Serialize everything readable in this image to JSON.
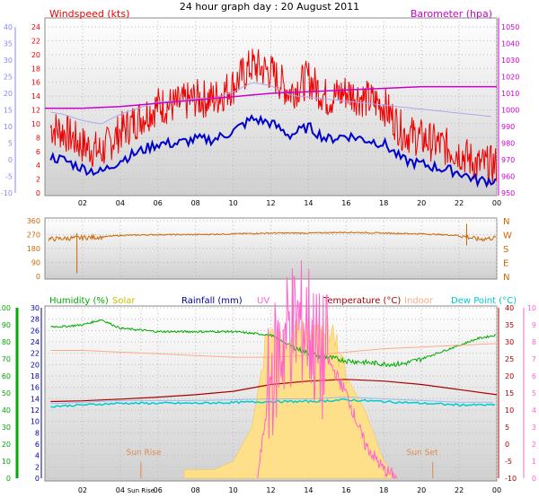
{
  "title": "24 hour graph day : 20 August 2011",
  "colors": {
    "wind": "#ee0000",
    "wind_avg": "#0000cc",
    "baro": "#cc00cc",
    "dir": "#cc6600",
    "humidity": "#00aa00",
    "solar": "#ddcc00",
    "rain": "#000099",
    "uv": "#ff66cc",
    "temp": "#aa0000",
    "indoor": "#ffaa88",
    "dew": "#00cccc",
    "left_axis_light": "#8888ee"
  },
  "x_ticks": [
    "02",
    "04",
    "06",
    "08",
    "10",
    "12",
    "14",
    "16",
    "18",
    "20",
    "22",
    "00"
  ],
  "panel1": {
    "title_left": "Windspeed (kts)",
    "title_right": "Barometer (hpa)",
    "left_ticks": [
      "24",
      "22",
      "20",
      "18",
      "16",
      "14",
      "12",
      "10",
      "8",
      "6",
      "4",
      "2",
      "0"
    ],
    "right_ticks": [
      "1050",
      "1040",
      "1030",
      "1020",
      "1010",
      "1000",
      "990",
      "980",
      "970",
      "960",
      "950"
    ],
    "outer_left_ticks": [
      "40",
      "35",
      "30",
      "25",
      "20",
      "15",
      "10",
      "5",
      "0",
      "-5",
      "-10"
    ]
  },
  "panel2": {
    "left_ticks": [
      "360",
      "270",
      "180",
      "90",
      "0"
    ],
    "right_labels": [
      "N",
      "W",
      "S",
      "E",
      "N"
    ]
  },
  "panel3": {
    "legend": {
      "humidity": "Humidity (%)",
      "solar": "Solar",
      "rainfall": "Rainfall (mm)",
      "uv": "UV",
      "temperature": "Temperature (°C)",
      "indoor": "Indoor",
      "dewpoint": "Dew Point (°C)"
    },
    "hum_ticks": [
      "100",
      "90",
      "80",
      "70",
      "60",
      "50",
      "40",
      "30",
      "20",
      "10",
      "0"
    ],
    "rain_ticks": [
      "30",
      "28",
      "26",
      "24",
      "22",
      "20",
      "18",
      "16",
      "14",
      "12",
      "10",
      "8",
      "6",
      "4",
      "2",
      "0"
    ],
    "temp_ticks": [
      "40",
      "35",
      "30",
      "25",
      "20",
      "15",
      "10",
      "5",
      "0",
      "-5",
      "-10"
    ],
    "uv_ticks": [
      "10",
      "9",
      "8",
      "7",
      "6",
      "5",
      "4",
      "3",
      "2",
      "1",
      "0"
    ],
    "x_ticks": [
      "02",
      "04",
      "Sun Rise",
      "06",
      "08",
      "10",
      "12",
      "14",
      "16",
      "18",
      "20",
      "22",
      "00"
    ],
    "sun_rise_label": "Sun Rise",
    "sun_set_label": "Sun Set"
  },
  "chart_data": [
    {
      "type": "line",
      "title": "Windspeed (kts)",
      "x_unit": "hour",
      "ylim": [
        0,
        25
      ],
      "y2lim": [
        950,
        1050
      ],
      "series": [
        {
          "name": "Windspeed (kts)",
          "x": [
            0,
            1,
            2,
            3,
            4,
            5,
            6,
            7,
            8,
            9,
            10,
            11,
            12,
            13,
            14,
            15,
            16,
            17,
            18,
            19,
            20,
            21,
            22,
            23,
            24
          ],
          "values": [
            9,
            8,
            6,
            5,
            8,
            10,
            12,
            12,
            13,
            13,
            15,
            18,
            17,
            14,
            16,
            13,
            14,
            13,
            12,
            8,
            7,
            6,
            5,
            3,
            3
          ]
        },
        {
          "name": "Barometer (hpa)",
          "x": [
            0,
            2,
            4,
            6,
            8,
            10,
            12,
            14,
            16,
            18,
            20,
            22,
            24
          ],
          "values": [
            1001,
            1001,
            1002,
            1004,
            1006,
            1008,
            1010,
            1011,
            1012,
            1013,
            1014,
            1014,
            1014
          ]
        }
      ]
    },
    {
      "type": "line",
      "x_unit": "hour",
      "ylim": [
        0,
        360
      ],
      "series": [
        {
          "x": [
            0,
            1,
            2,
            3,
            4,
            6,
            8,
            10,
            12,
            14,
            16,
            18,
            20,
            22,
            23,
            24
          ],
          "values": [
            240,
            245,
            250,
            255,
            265,
            270,
            270,
            275,
            280,
            280,
            285,
            280,
            275,
            265,
            240,
            250
          ]
        }
      ]
    },
    {
      "type": "line",
      "x_unit": "hour",
      "ylim": [
        0,
        100
      ],
      "series": [
        {
          "name": "Humidity (%)",
          "x": [
            0,
            1,
            2,
            3,
            4,
            6,
            8,
            10,
            12,
            13,
            14,
            15,
            16,
            18,
            19,
            20,
            21,
            22,
            23,
            24
          ],
          "values": [
            89,
            89,
            90,
            93,
            88,
            86,
            86,
            86,
            84,
            78,
            73,
            71,
            69,
            67,
            67,
            70,
            74,
            78,
            82,
            84
          ]
        },
        {
          "name": "Temperature (°C)",
          "x": [
            0,
            2,
            4,
            6,
            8,
            10,
            12,
            14,
            16,
            18,
            20,
            22,
            24
          ],
          "values": [
            12.5,
            12.7,
            13.2,
            13.8,
            14.5,
            15.5,
            17.5,
            18.5,
            19,
            18.5,
            17.5,
            16,
            14.5
          ]
        },
        {
          "name": "Indoor",
          "x": [
            0,
            2,
            4,
            6,
            8,
            10,
            12,
            14,
            16,
            18,
            20,
            22,
            24
          ],
          "values": [
            27.5,
            27.5,
            27,
            26.5,
            26,
            25.5,
            25.5,
            26,
            27,
            28,
            28.5,
            29,
            29.5
          ]
        },
        {
          "name": "Dew Point (°C)",
          "x": [
            0,
            2,
            4,
            6,
            8,
            10,
            12,
            14,
            16,
            18,
            20,
            22,
            24
          ],
          "values": [
            11,
            11.5,
            12,
            12,
            12,
            12.2,
            12.5,
            12.5,
            13,
            12.5,
            12,
            11.5,
            11.5
          ]
        },
        {
          "name": "UV",
          "x": [
            11.3,
            12,
            13,
            14,
            14.5,
            15,
            16,
            17,
            18,
            18.7
          ],
          "values": [
            0,
            6,
            9,
            9,
            7,
            7,
            5,
            2,
            0.5,
            0
          ]
        },
        {
          "name": "Solar",
          "x": [
            7.4,
            7.7,
            8.5,
            9,
            10,
            11,
            11.6,
            12,
            13,
            14,
            15,
            16,
            17,
            18,
            18.7
          ],
          "values": [
            0.5,
            0.5,
            0.5,
            0.5,
            1,
            3,
            7,
            9,
            8,
            9,
            9,
            6,
            4,
            1,
            0
          ]
        }
      ]
    }
  ]
}
